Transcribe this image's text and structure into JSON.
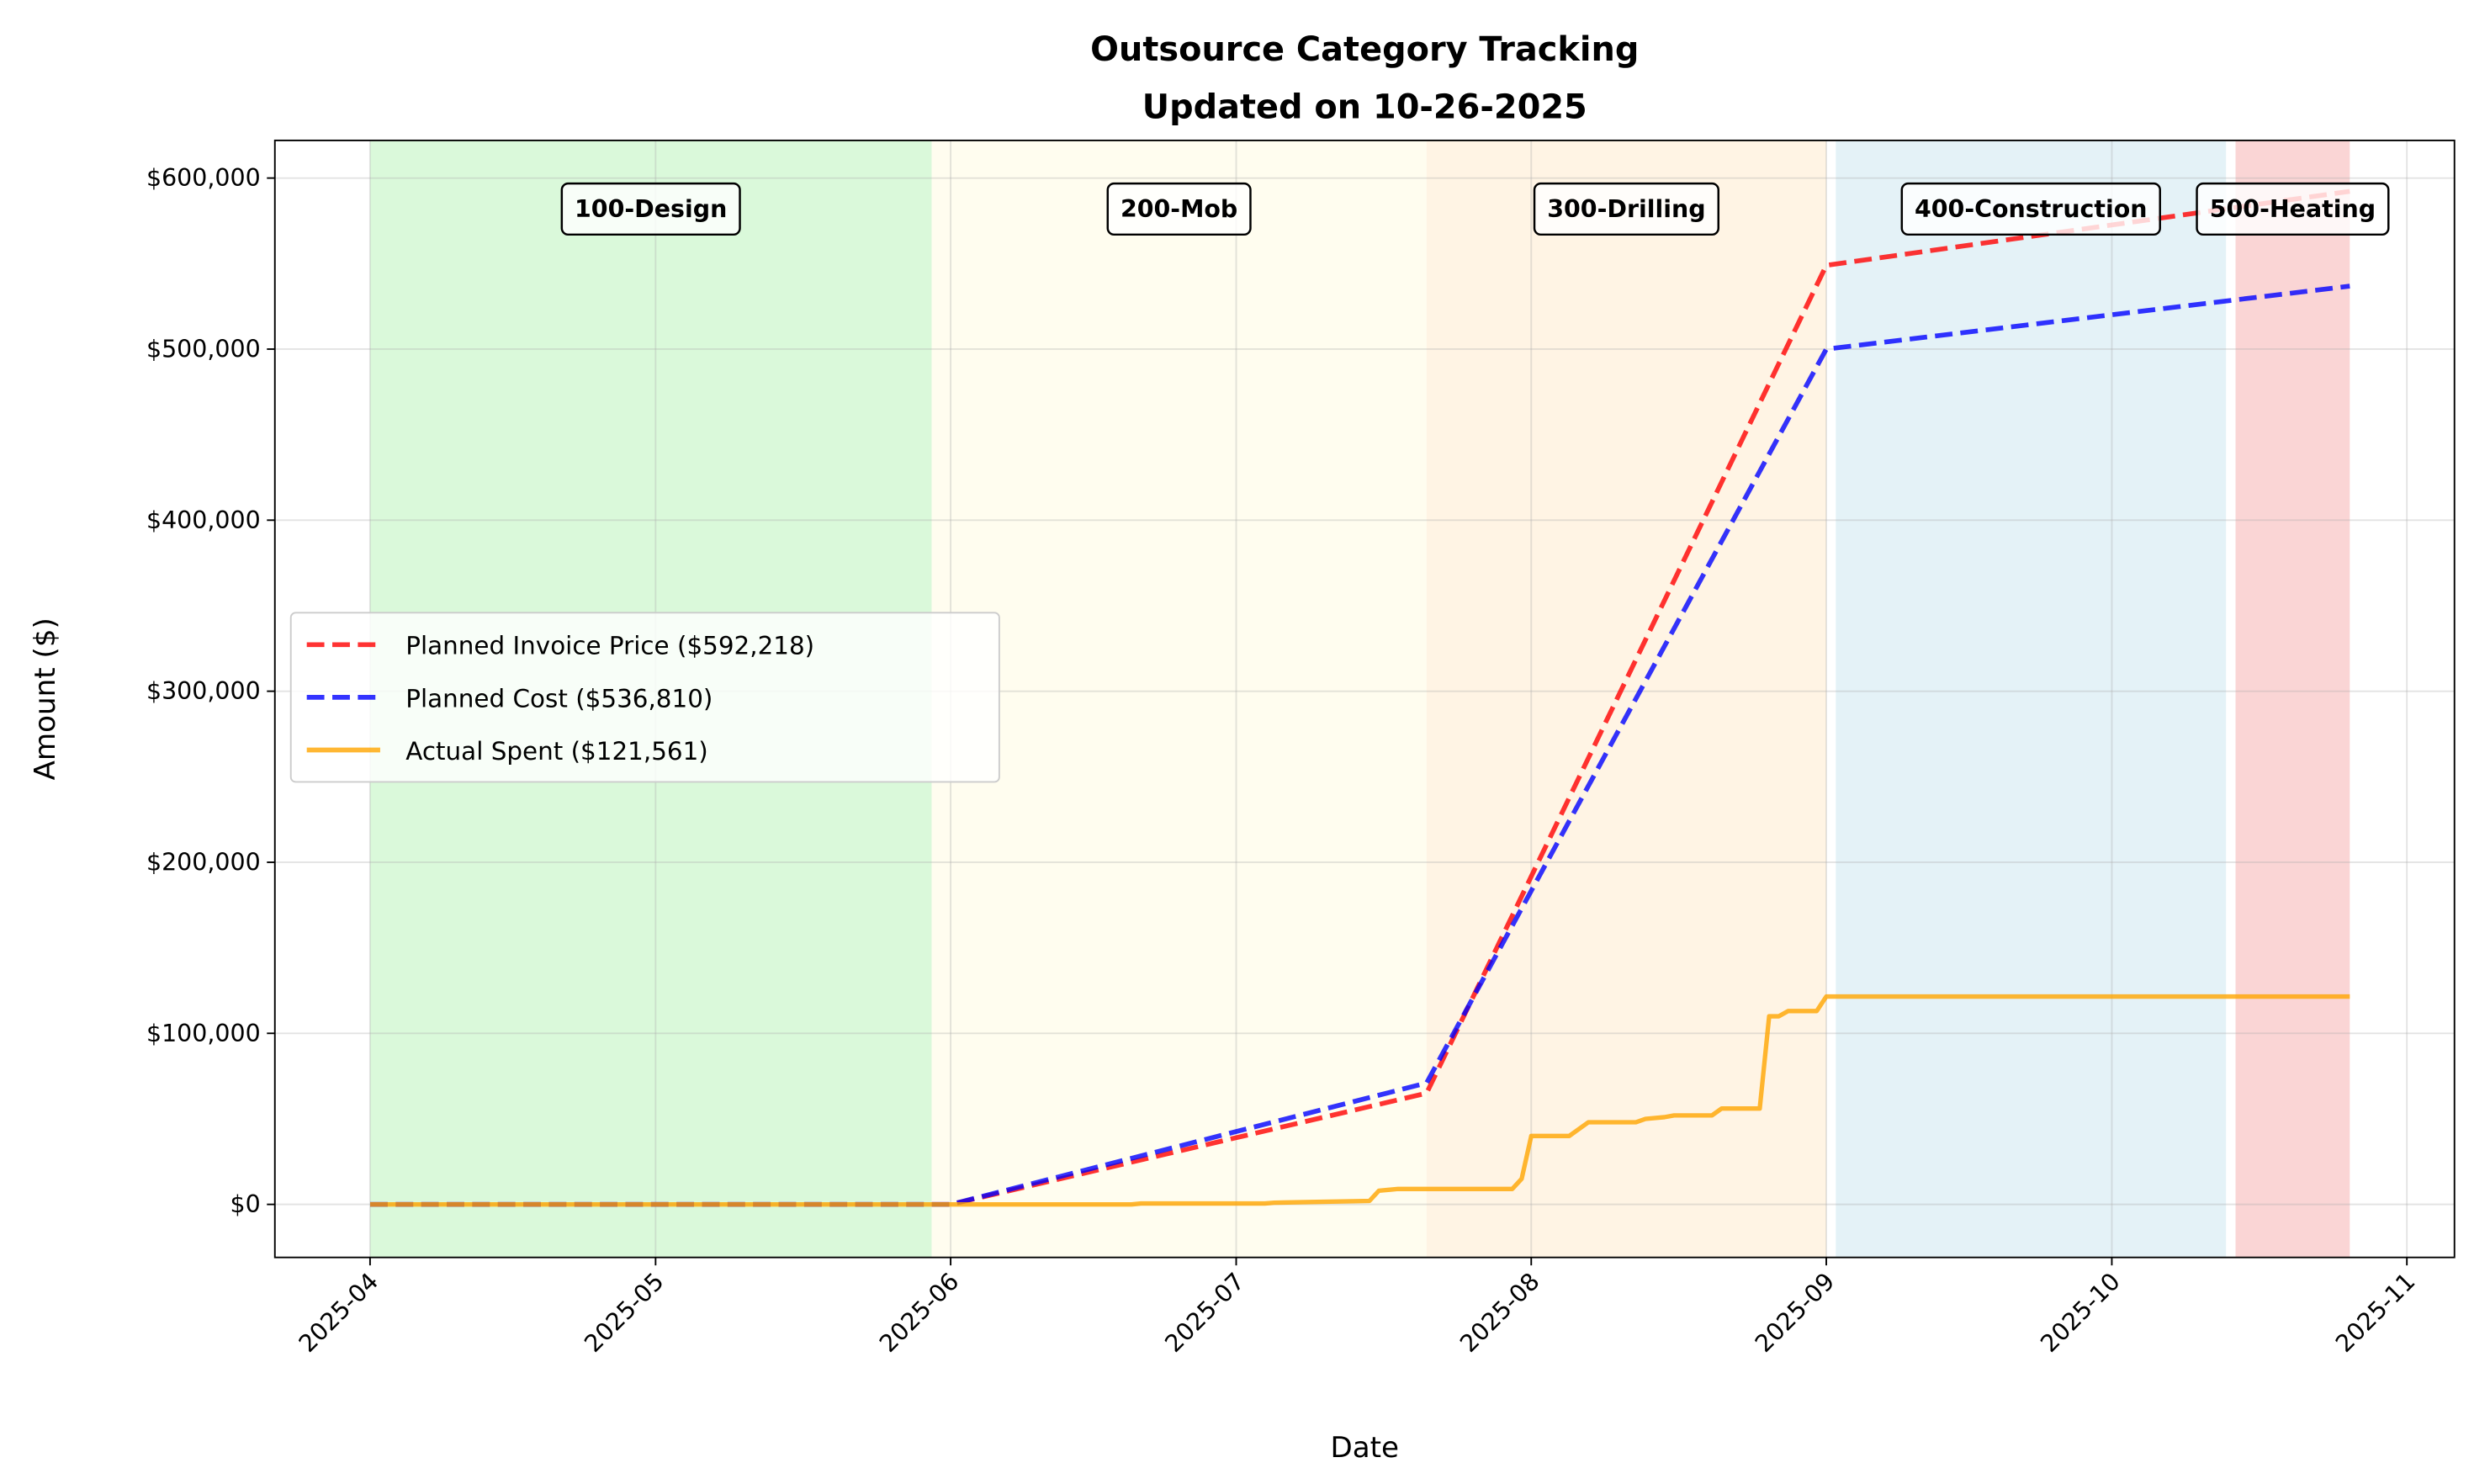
{
  "chart_data": {
    "type": "line",
    "title": "Outsource Category Tracking",
    "subtitle": "Updated on 10-26-2025",
    "xlabel": "Date",
    "ylabel": "Amount ($)",
    "xlim": [
      "2025-03-22",
      "2025-11-06"
    ],
    "ylim": [
      -31000,
      622000
    ],
    "grid": true,
    "legend_placement": "center-left",
    "x_ticks": [
      "2025-04-01",
      "2025-05-01",
      "2025-06-01",
      "2025-07-01",
      "2025-08-01",
      "2025-09-01",
      "2025-10-01",
      "2025-11-01"
    ],
    "x_tick_labels": [
      "2025-04",
      "2025-05",
      "2025-06",
      "2025-07",
      "2025-08",
      "2025-09",
      "2025-10",
      "2025-11"
    ],
    "y_ticks": [
      0,
      100000,
      200000,
      300000,
      400000,
      500000,
      600000
    ],
    "y_tick_labels": [
      "$0",
      "$100,000",
      "$200,000",
      "$300,000",
      "$400,000",
      "$500,000",
      "$600,000"
    ],
    "phases": [
      {
        "label": "100-Design",
        "start": "2025-04-01",
        "end": "2025-05-30",
        "color": "#90ee90",
        "opacity": 0.33
      },
      {
        "label": "200-Mob",
        "start": "2025-05-30",
        "end": "2025-07-21",
        "color": "#fffacd",
        "opacity": 0.33
      },
      {
        "label": "300-Drilling",
        "start": "2025-07-21",
        "end": "2025-09-01",
        "color": "#ffdead",
        "opacity": 0.33
      },
      {
        "label": "400-Construction",
        "start": "2025-09-02",
        "end": "2025-10-13",
        "color": "#add8e6",
        "opacity": 0.33
      },
      {
        "label": "500-Heating",
        "start": "2025-10-14",
        "end": "2025-10-26",
        "color": "#f08080",
        "opacity": 0.33
      }
    ],
    "series": [
      {
        "name": "Planned Invoice Price ($592,218)",
        "color": "#ff0000",
        "style": "dashed",
        "x": [
          "2025-04-01",
          "2025-06-01",
          "2025-07-21",
          "2025-09-01",
          "2025-10-26"
        ],
        "y": [
          0,
          0,
          65000,
          549000,
          592218
        ]
      },
      {
        "name": "Planned Cost ($536,810)",
        "color": "#0000ff",
        "style": "dashed",
        "x": [
          "2025-04-01",
          "2025-06-01",
          "2025-07-21",
          "2025-09-01",
          "2025-10-26"
        ],
        "y": [
          0,
          0,
          71000,
          500000,
          536810
        ]
      },
      {
        "name": "Actual Spent ($121,561)",
        "color": "#ffa500",
        "style": "solid",
        "x": [
          "2025-04-01",
          "2025-06-20",
          "2025-06-21",
          "2025-07-04",
          "2025-07-05",
          "2025-07-15",
          "2025-07-16",
          "2025-07-18",
          "2025-07-30",
          "2025-07-31",
          "2025-08-01",
          "2025-08-05",
          "2025-08-07",
          "2025-08-12",
          "2025-08-13",
          "2025-08-15",
          "2025-08-16",
          "2025-08-20",
          "2025-08-21",
          "2025-08-25",
          "2025-08-26",
          "2025-08-27",
          "2025-08-28",
          "2025-08-31",
          "2025-09-01",
          "2025-10-26"
        ],
        "y": [
          0,
          0,
          500,
          500,
          1000,
          2000,
          8000,
          9000,
          9000,
          15000,
          40000,
          40000,
          48000,
          48000,
          50000,
          51000,
          52000,
          52000,
          56000,
          56000,
          110000,
          110000,
          113000,
          113000,
          121561,
          121561
        ]
      }
    ]
  }
}
